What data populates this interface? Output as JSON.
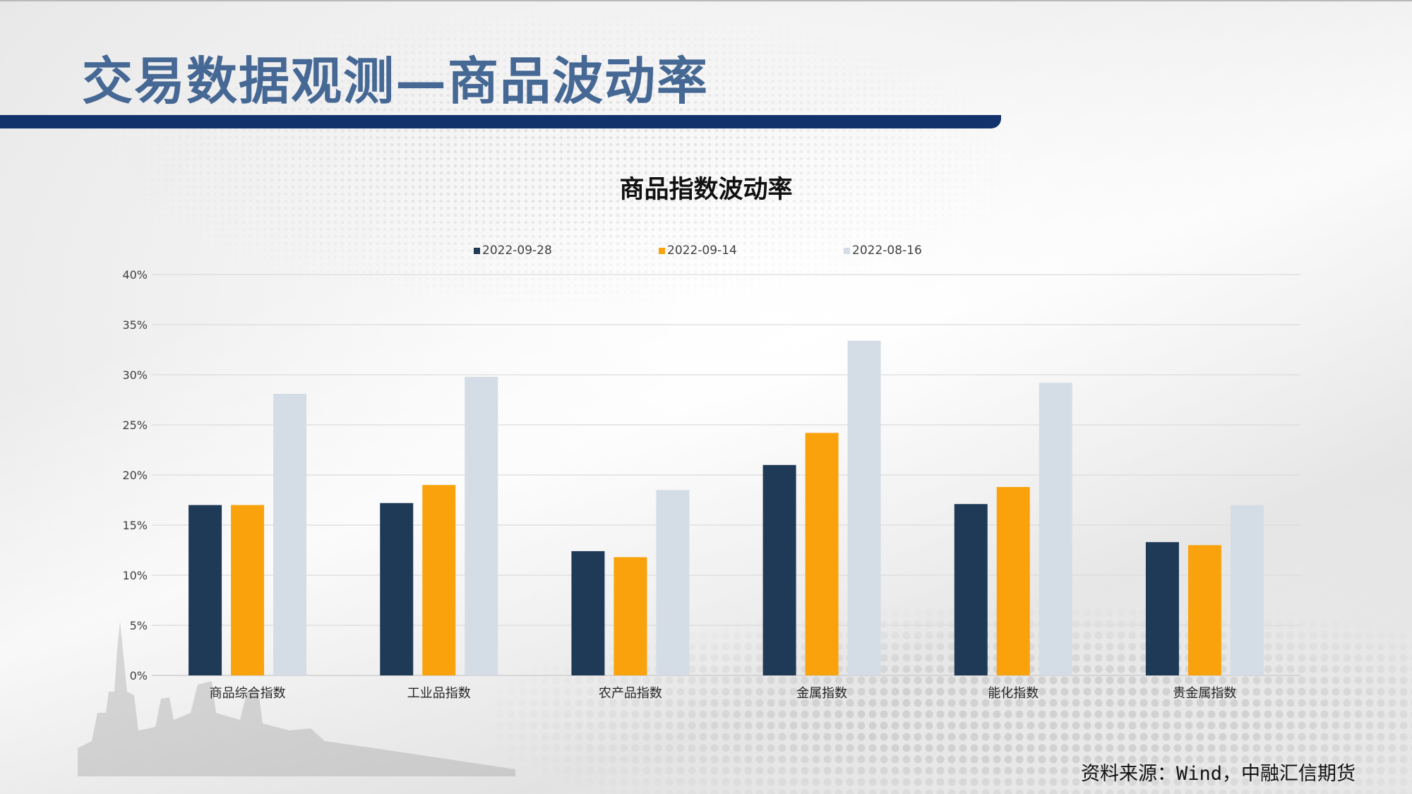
{
  "page": {
    "title": "交易数据观测—商品波动率",
    "source": "资料来源：Wind，中融汇信期货"
  },
  "chart_data": {
    "type": "bar",
    "title": "商品指数波动率",
    "categories": [
      "商品综合指数",
      "工业品指数",
      "农产品指数",
      "金属指数",
      "能化指数",
      "贵金属指数"
    ],
    "series": [
      {
        "name": "2022-09-28",
        "color": "#1f3a57",
        "values": [
          17.0,
          17.2,
          12.4,
          21.0,
          17.1,
          13.3
        ]
      },
      {
        "name": "2022-09-14",
        "color": "#f9a20c",
        "values": [
          17.0,
          19.0,
          11.8,
          24.2,
          18.8,
          13.0
        ]
      },
      {
        "name": "2022-08-16",
        "color": "#d4dde5",
        "values": [
          28.1,
          29.8,
          18.5,
          33.4,
          29.2,
          17.0
        ]
      }
    ],
    "yticks": [
      "0%",
      "5%",
      "10%",
      "15%",
      "20%",
      "25%",
      "30%",
      "35%",
      "40%"
    ],
    "ylim": [
      0,
      40
    ],
    "xlabel": "",
    "ylabel": "",
    "grid": true,
    "legend_position": "top"
  }
}
